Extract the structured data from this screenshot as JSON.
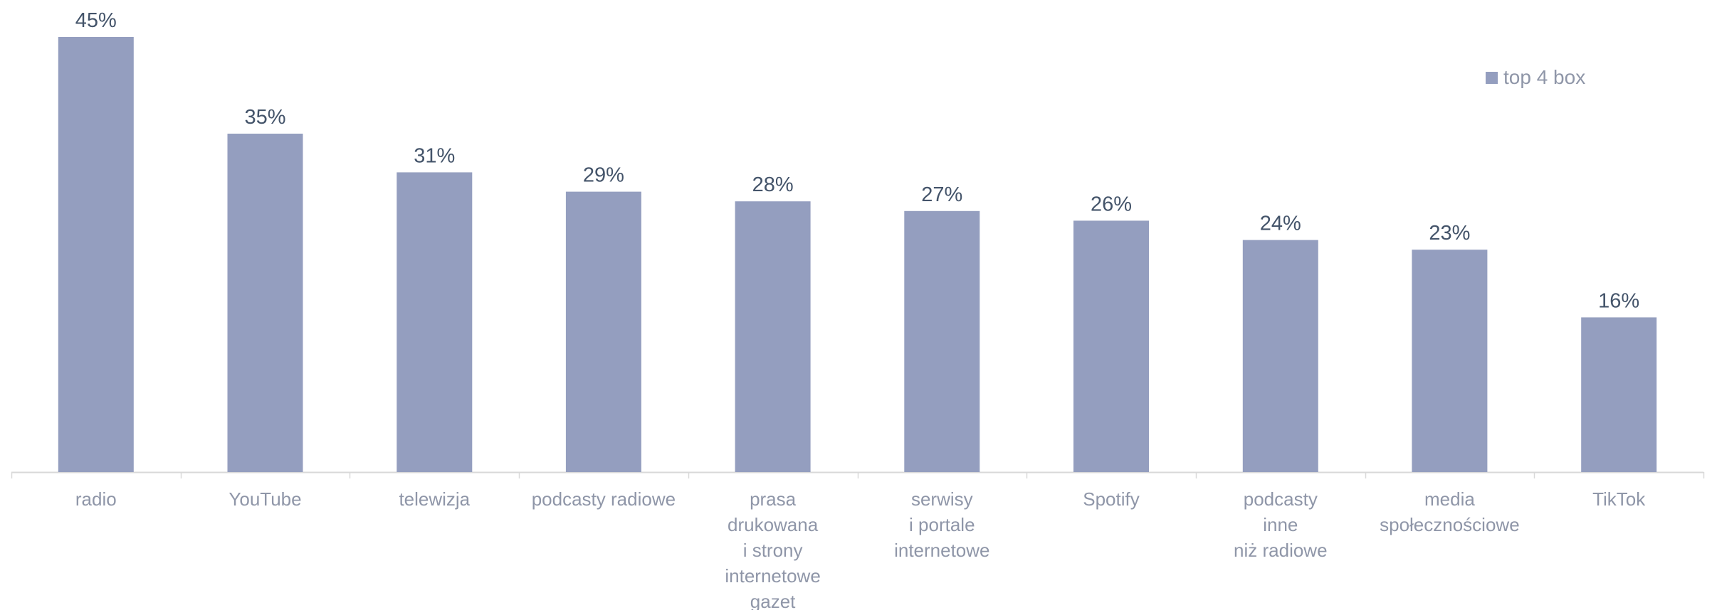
{
  "chart_data": {
    "type": "bar",
    "title": "",
    "xlabel": "",
    "ylabel": "",
    "ylim": [
      0,
      45
    ],
    "grid": false,
    "legend_position": "top-right",
    "categories": [
      "radio",
      "YouTube",
      "telewizja",
      "podcasty radiowe",
      "prasa\ndrukowana\ni strony\ninternetowe\ngazet",
      "serwisy\ni portale\ninternetowe",
      "Spotify",
      "podcasty\ninne\nniż radiowe",
      "media\nspołecznościowe",
      "TikTok"
    ],
    "series": [
      {
        "name": "top 4 box",
        "values": [
          45,
          35,
          31,
          29,
          28,
          27,
          26,
          24,
          23,
          16
        ],
        "data_labels": [
          "45%",
          "35%",
          "31%",
          "29%",
          "28%",
          "27%",
          "26%",
          "24%",
          "23%",
          "16%"
        ],
        "color": "#949ebf"
      }
    ]
  },
  "colors": {
    "bar": "#949ebf",
    "axis": "#d9d9d9",
    "category_text": "#8f96a8",
    "value_text": "#44546a"
  }
}
